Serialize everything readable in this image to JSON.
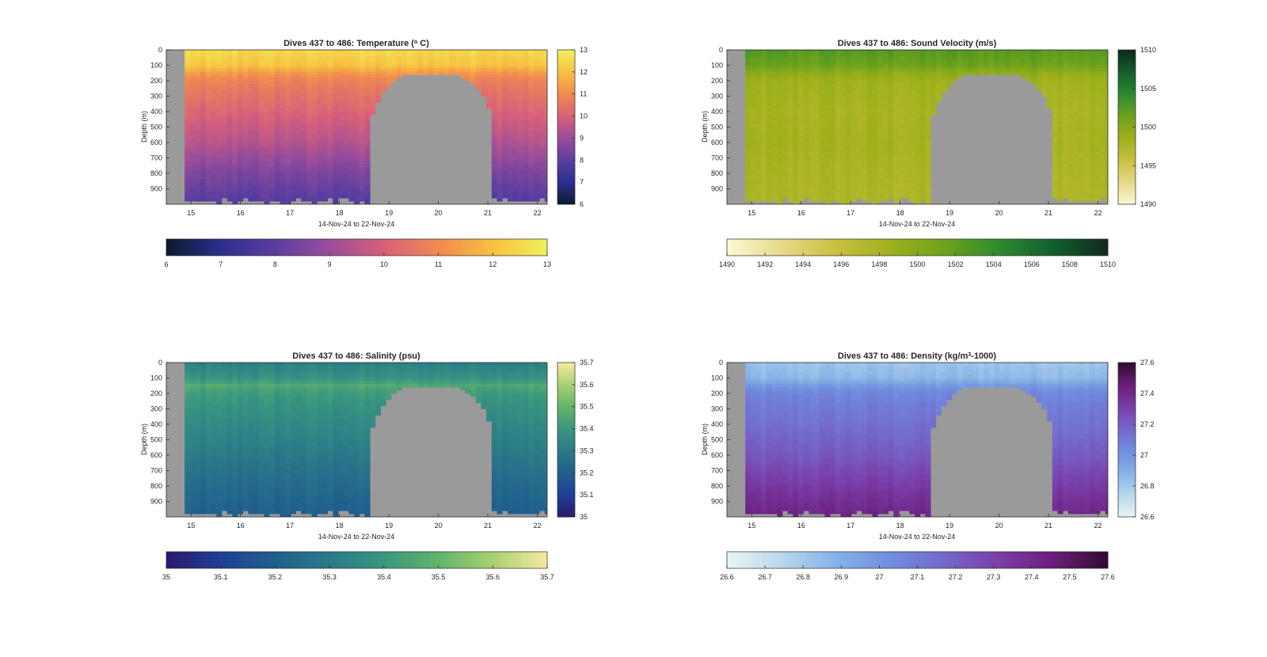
{
  "chart_data": [
    {
      "type": "heatmap",
      "variable": "temperature",
      "title_main": "Dives 437 to 486: Temperature (",
      "title_sup": "o",
      "title_tail": " C)",
      "xlabel": "14-Nov-24 to 22-Nov-24",
      "ylabel": "Depth (m)",
      "x_ticks": [
        "15",
        "16",
        "17",
        "18",
        "19",
        "20",
        "21",
        "22"
      ],
      "x_range": [
        14.5,
        22.2
      ],
      "y_ticks": [
        "0",
        "100",
        "200",
        "300",
        "400",
        "500",
        "600",
        "700",
        "800",
        "900"
      ],
      "y_range": [
        0,
        1000
      ],
      "y_reversed": true,
      "clim": [
        6,
        13
      ],
      "colorbar_right_ticks": [
        "6",
        "7",
        "8",
        "9",
        "10",
        "11",
        "12",
        "13"
      ],
      "colorbar_bottom_ticks": [
        "6",
        "7",
        "8",
        "9",
        "10",
        "11",
        "12",
        "13"
      ],
      "colormap": [
        "#0b1a2e",
        "#2c2f8e",
        "#5a3ea0",
        "#9a4d9a",
        "#d8607a",
        "#f08a50",
        "#f8c040",
        "#eef25c"
      ],
      "profile": {
        "depths": [
          0,
          100,
          150,
          200,
          400,
          600,
          800,
          980
        ],
        "values": [
          12.5,
          12.1,
          11.3,
          10.8,
          10.1,
          9.4,
          8.5,
          7.9
        ]
      }
    },
    {
      "type": "heatmap",
      "variable": "sound_velocity",
      "title_main": "Dives 437 to 486: Sound Velocity (m/s)",
      "title_sup": "",
      "title_tail": "",
      "xlabel": "14-Nov-24 to 22-Nov-24",
      "ylabel": "Depth (m)",
      "x_ticks": [
        "15",
        "16",
        "17",
        "18",
        "19",
        "20",
        "21",
        "22"
      ],
      "x_range": [
        14.5,
        22.2
      ],
      "y_ticks": [
        "0",
        "100",
        "200",
        "300",
        "400",
        "500",
        "600",
        "700",
        "800",
        "900"
      ],
      "y_range": [
        0,
        1000
      ],
      "y_reversed": true,
      "clim": [
        1490,
        1510
      ],
      "colorbar_right_ticks": [
        "1490",
        "1495",
        "1500",
        "1505",
        "1510"
      ],
      "colorbar_bottom_ticks": [
        "1490",
        "1492",
        "1494",
        "1496",
        "1498",
        "1500",
        "1502",
        "1504",
        "1506",
        "1508",
        "1510"
      ],
      "colormap": [
        "#fdf8d6",
        "#e6d98a",
        "#c8c040",
        "#9fb01c",
        "#6ea21c",
        "#2e8a30",
        "#135e2e",
        "#10291c"
      ],
      "profile": {
        "depths": [
          0,
          100,
          150,
          200,
          400,
          600,
          800,
          980
        ],
        "values": [
          1502.5,
          1501.5,
          1499.5,
          1498.5,
          1498.0,
          1498.2,
          1497.8,
          1497.5
        ]
      }
    },
    {
      "type": "heatmap",
      "variable": "salinity",
      "title_main": "Dives 437 to 486: Salinity (psu)",
      "title_sup": "",
      "title_tail": "",
      "xlabel": "14-Nov-24 to 22-Nov-24",
      "ylabel": "Depth (m)",
      "x_ticks": [
        "15",
        "16",
        "17",
        "18",
        "19",
        "20",
        "21",
        "22"
      ],
      "x_range": [
        14.5,
        22.2
      ],
      "y_ticks": [
        "0",
        "100",
        "200",
        "300",
        "400",
        "500",
        "600",
        "700",
        "800",
        "900"
      ],
      "y_range": [
        0,
        1000
      ],
      "y_reversed": true,
      "clim": [
        35,
        35.7
      ],
      "colorbar_right_ticks": [
        "35",
        "35.1",
        "35.2",
        "35.3",
        "35.4",
        "35.5",
        "35.6",
        "35.7"
      ],
      "colorbar_bottom_ticks": [
        "35",
        "35.1",
        "35.2",
        "35.3",
        "35.4",
        "35.5",
        "35.6",
        "35.7"
      ],
      "colormap": [
        "#2a1a6e",
        "#1f3f96",
        "#205f8e",
        "#2a7a88",
        "#3a9680",
        "#62b46a",
        "#a8d070",
        "#f6eaa0"
      ],
      "profile": {
        "depths": [
          0,
          100,
          150,
          200,
          400,
          600,
          800,
          980
        ],
        "values": [
          35.32,
          35.38,
          35.46,
          35.41,
          35.35,
          35.3,
          35.24,
          35.2
        ]
      }
    },
    {
      "type": "heatmap",
      "variable": "density",
      "title_main": "Dives 437 to 486: Density (kg/m",
      "title_sup": "3",
      "title_tail": "-1000)",
      "xlabel": "14-Nov-24 to 22-Nov-24",
      "ylabel": "Depth (m)",
      "x_ticks": [
        "15",
        "16",
        "17",
        "18",
        "19",
        "20",
        "21",
        "22"
      ],
      "x_range": [
        14.5,
        22.2
      ],
      "y_ticks": [
        "0",
        "100",
        "200",
        "300",
        "400",
        "500",
        "600",
        "700",
        "800",
        "900"
      ],
      "y_range": [
        0,
        1000
      ],
      "y_reversed": true,
      "clim": [
        26.6,
        27.6
      ],
      "colorbar_right_ticks": [
        "26.6",
        "26.8",
        "27",
        "27.2",
        "27.4",
        "27.6"
      ],
      "colorbar_bottom_ticks": [
        "26.6",
        "26.7",
        "26.8",
        "26.9",
        "27",
        "27.1",
        "27.2",
        "27.3",
        "27.4",
        "27.5",
        "27.6"
      ],
      "colormap": [
        "#eaf4f6",
        "#b8d8ec",
        "#86b2e6",
        "#6f8ee0",
        "#7468cc",
        "#7a3ea8",
        "#6a1e7a",
        "#320a30"
      ],
      "profile": {
        "depths": [
          0,
          100,
          150,
          200,
          400,
          600,
          800,
          980
        ],
        "values": [
          26.82,
          26.86,
          26.98,
          27.06,
          27.14,
          27.22,
          27.33,
          27.42
        ]
      }
    }
  ]
}
